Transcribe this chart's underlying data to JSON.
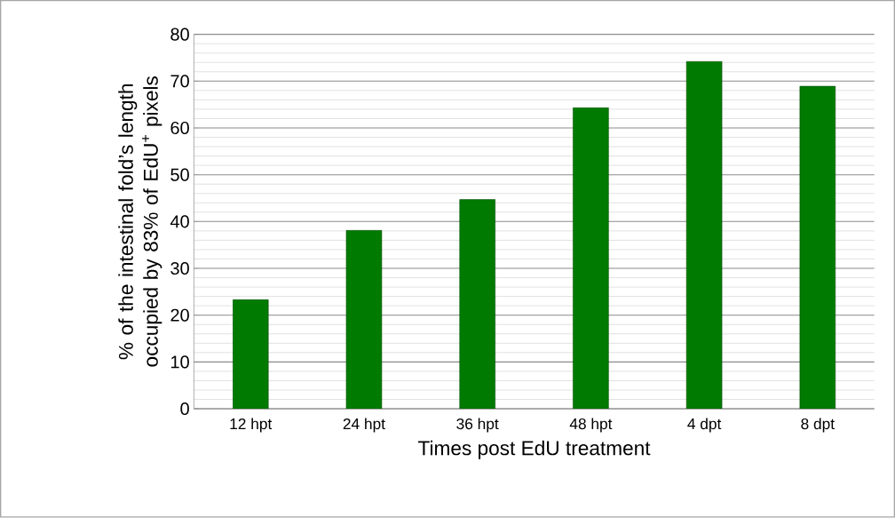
{
  "chart_data": {
    "type": "bar",
    "categories": [
      "12 hpt",
      "24 hpt",
      "36 hpt",
      "48 hpt",
      "4 dpt",
      "8 dpt"
    ],
    "values": [
      23.3,
      38.1,
      44.7,
      64.3,
      74.2,
      68.9
    ],
    "color": "#007a00",
    "xlabel": "Times post EdU treatment",
    "ylabel": "% of the intestinal fold’s length occupied by 83% of EdU$^{+}$ pixels",
    "ylim": [
      0,
      80
    ],
    "yticks": [
      0,
      10,
      20,
      30,
      40,
      50,
      60,
      70,
      80
    ],
    "grid": "y"
  }
}
